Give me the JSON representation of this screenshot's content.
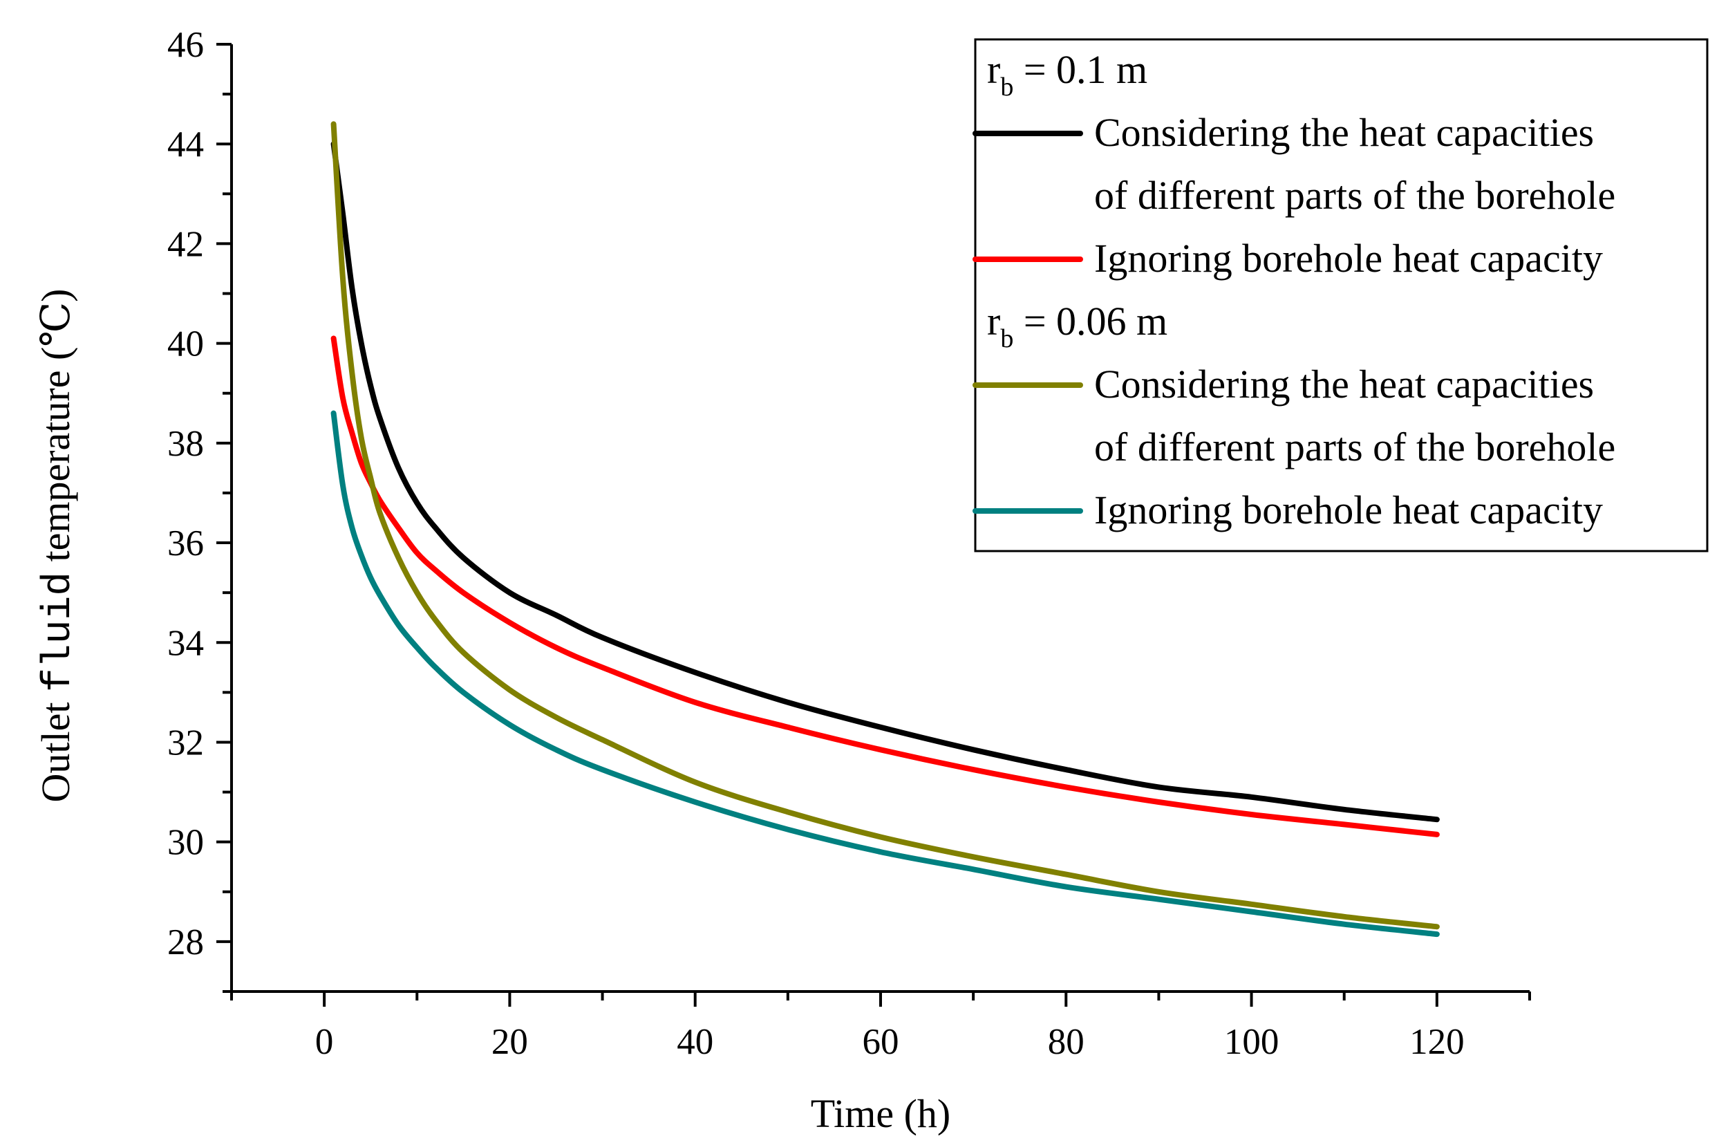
{
  "chart_data": {
    "type": "line",
    "title": "",
    "xlabel": "Time  (h)",
    "ylabel_parts": [
      "Outlet ",
      "fluid",
      " temperature (",
      "℃",
      ")"
    ],
    "xlim": [
      -10,
      130
    ],
    "ylim": [
      27,
      46
    ],
    "xticks": [
      0,
      20,
      40,
      60,
      80,
      100,
      120
    ],
    "xtick_labels": [
      "0",
      "20",
      "40",
      "60",
      "80",
      "100",
      "120"
    ],
    "yticks": [
      28,
      30,
      32,
      34,
      36,
      38,
      40,
      42,
      44,
      46
    ],
    "ytick_labels": [
      "28",
      "30",
      "32",
      "34",
      "36",
      "38",
      "40",
      "42",
      "44",
      "46"
    ],
    "x_minor_step": 10,
    "y_minor_step": 1,
    "grid": false,
    "legend_position": "top-right",
    "series": [
      {
        "name": "rb = 0.1 m, considering the heat capacities of different parts of the borehole",
        "color": "#000000",
        "x": [
          1,
          2,
          3,
          4,
          5,
          6,
          8,
          10,
          12,
          15,
          20,
          25,
          30,
          40,
          50,
          60,
          70,
          80,
          90,
          100,
          110,
          120
        ],
        "y": [
          44.0,
          42.6,
          41.1,
          40.0,
          39.15,
          38.5,
          37.5,
          36.8,
          36.3,
          35.7,
          35.0,
          34.55,
          34.1,
          33.4,
          32.8,
          32.3,
          31.85,
          31.45,
          31.1,
          30.9,
          30.65,
          30.45
        ]
      },
      {
        "name": "rb = 0.1 m, ignoring borehole heat capacity",
        "color": "#ff0000",
        "x": [
          1,
          2,
          3,
          4,
          5,
          6,
          8,
          10,
          12,
          15,
          20,
          25,
          30,
          40,
          50,
          60,
          70,
          80,
          90,
          100,
          110,
          120
        ],
        "y": [
          40.1,
          38.9,
          38.2,
          37.6,
          37.2,
          36.85,
          36.3,
          35.8,
          35.45,
          35.0,
          34.4,
          33.9,
          33.5,
          32.8,
          32.3,
          31.85,
          31.45,
          31.1,
          30.8,
          30.55,
          30.35,
          30.15
        ]
      },
      {
        "name": "rb = 0.06 m, considering the heat capacities of different parts of the borehole",
        "color": "#808000",
        "x": [
          1,
          2,
          3,
          4,
          5,
          6,
          8,
          10,
          12,
          15,
          20,
          25,
          30,
          40,
          50,
          60,
          70,
          80,
          90,
          100,
          110,
          120
        ],
        "y": [
          44.4,
          41.3,
          39.4,
          38.1,
          37.3,
          36.6,
          35.7,
          35.0,
          34.45,
          33.8,
          33.05,
          32.5,
          32.05,
          31.2,
          30.6,
          30.1,
          29.7,
          29.35,
          29.0,
          28.75,
          28.5,
          28.3
        ]
      },
      {
        "name": "rb = 0.06 m, ignoring borehole heat capacity",
        "color": "#008080",
        "x": [
          1,
          2,
          3,
          4,
          5,
          6,
          8,
          10,
          12,
          15,
          20,
          25,
          30,
          40,
          50,
          60,
          70,
          80,
          90,
          100,
          110,
          120
        ],
        "y": [
          38.6,
          37.15,
          36.3,
          35.75,
          35.3,
          34.95,
          34.35,
          33.9,
          33.5,
          33.0,
          32.35,
          31.85,
          31.45,
          30.8,
          30.25,
          29.8,
          29.45,
          29.1,
          28.85,
          28.6,
          28.35,
          28.15
        ]
      }
    ],
    "legend": {
      "groups": [
        {
          "header_main": "r",
          "header_sub": "b",
          "header_rest": " = 0.1 m",
          "entries": [
            {
              "color": "#000000",
              "lines": [
                " Considering the heat capacities",
                "of different parts of the borehole"
              ]
            },
            {
              "color": "#ff0000",
              "lines": [
                "Ignoring borehole heat capacity"
              ]
            }
          ]
        },
        {
          "header_main": "r",
          "header_sub": "b",
          "header_rest": " = 0.06 m",
          "entries": [
            {
              "color": "#808000",
              "lines": [
                "Considering the heat capacities",
                "of different parts of the borehole"
              ]
            },
            {
              "color": "#008080",
              "lines": [
                "Ignoring borehole heat capacity"
              ]
            }
          ]
        }
      ]
    }
  }
}
